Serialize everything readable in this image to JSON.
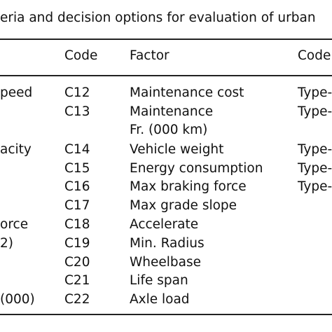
{
  "table": {
    "title": "eria and decision options for evaluation of urban",
    "header": [
      "Code",
      "Factor",
      "Code"
    ],
    "rows": [
      {
        "left": "peed",
        "code": "C12",
        "factor": "Maintenance cost",
        "type": "Type-"
      },
      {
        "code": "C13",
        "factor": "Maintenance",
        "type": "Type-"
      },
      {
        "factor": "Fr. (000 km)"
      },
      {
        "left": "acity",
        "code": "C14",
        "factor": "Vehicle weight",
        "type": "Type-"
      },
      {
        "code": "C15",
        "factor": "Energy consumption",
        "type": "Type-"
      },
      {
        "code": "C16",
        "factor": "Max braking force",
        "type": "Type-"
      },
      {
        "code": "C17",
        "factor": "Max grade slope"
      },
      {
        "left": "orce",
        "code": "C18",
        "factor": "Accelerate"
      },
      {
        "left": "2)",
        "code": "C19",
        "factor": "Min. Radius"
      },
      {
        "code": "C20",
        "factor": "Wheelbase"
      },
      {
        "code": "C21",
        "factor": "Life span"
      },
      {
        "left": "(000)",
        "code": "C22",
        "factor": "Axle load"
      }
    ]
  }
}
